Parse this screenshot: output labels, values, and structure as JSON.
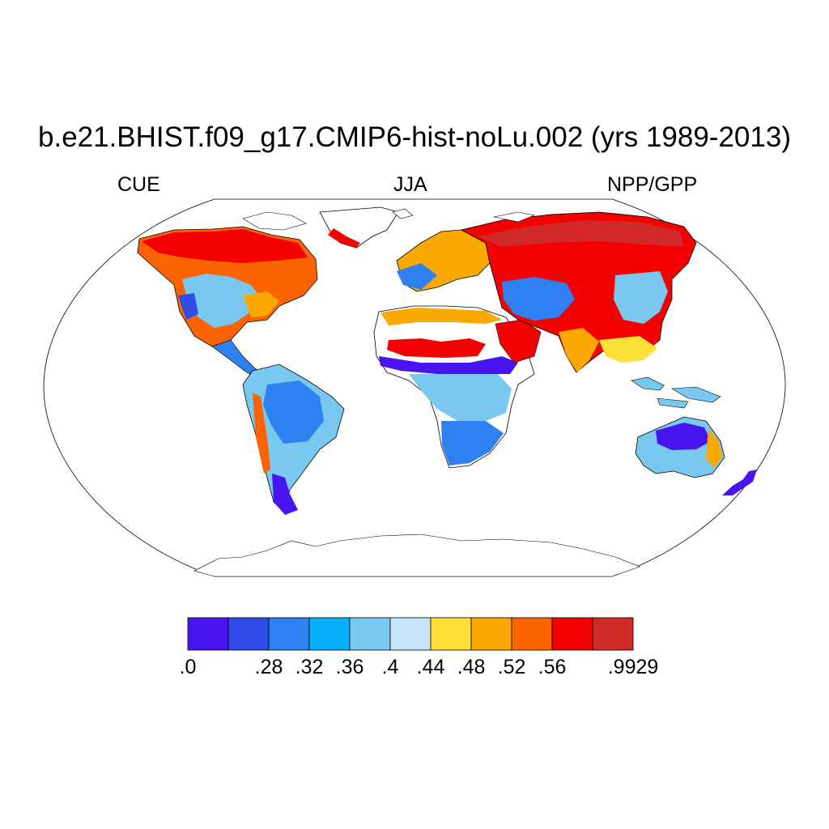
{
  "title": "b.e21.BHIST.f09_g17.CMIP6-hist-noLu.002 (yrs 1989-2013)",
  "left_string": "CUE",
  "center_string": "JJA",
  "right_string": "NPP/GPP",
  "colorbar": {
    "colors": [
      "#4a14f0",
      "#2f4be8",
      "#2f80f0",
      "#08b0fa",
      "#78c8f0",
      "#c8e6fa",
      "#fde038",
      "#fba800",
      "#fb6400",
      "#f50000",
      "#d22828"
    ],
    "labels": [
      ".0",
      ".28",
      ".32",
      ".36",
      ".4",
      ".44",
      ".48",
      ".52",
      ".56",
      ".9929"
    ]
  },
  "map": {
    "projection": "Robinson",
    "land_outline_color": "#000000"
  }
}
